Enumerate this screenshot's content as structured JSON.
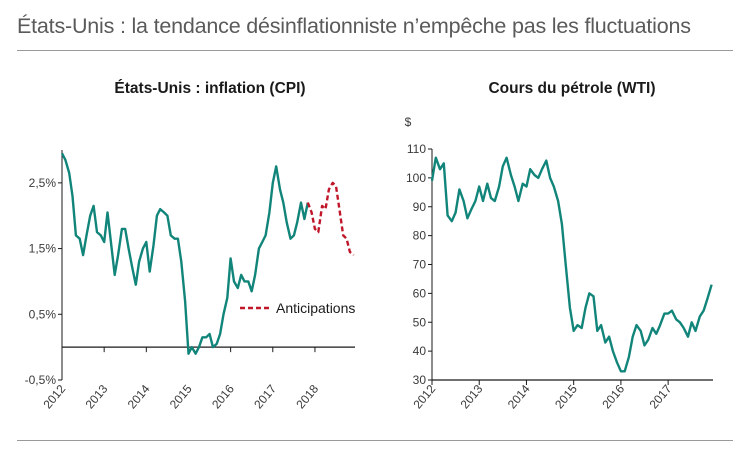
{
  "header": {
    "title": "États-Unis : la tendance désinflationniste n’empêche pas les fluctuations"
  },
  "colors": {
    "series": "#12857a",
    "forecast": "#c0182a",
    "axis": "#1a1a1a",
    "rule": "#9a9a9a"
  },
  "chart_data": [
    {
      "type": "line",
      "title": "États-Unis : inflation (CPI)",
      "ylim": [
        -0.5,
        3.0
      ],
      "y_ticks": [
        -0.5,
        0.5,
        1.5,
        2.5
      ],
      "y_tick_labels": [
        "-0,5%",
        "0,5%",
        "1,5%",
        "2,5%"
      ],
      "xlim": [
        2012.0,
        2018.95
      ],
      "x_ticks": [
        2012,
        2013,
        2014,
        2015,
        2016,
        2017,
        2018
      ],
      "x_tick_labels": [
        "2012",
        "2013",
        "2014",
        "2015",
        "2016",
        "2017",
        "2018"
      ],
      "legend": {
        "position": "right",
        "entries": [
          "Anticipations"
        ]
      },
      "series": [
        {
          "role": "actual",
          "x": [
            2012.0,
            2012.08,
            2012.17,
            2012.25,
            2012.33,
            2012.42,
            2012.5,
            2012.58,
            2012.67,
            2012.75,
            2012.83,
            2012.92,
            2013.0,
            2013.08,
            2013.17,
            2013.25,
            2013.33,
            2013.42,
            2013.5,
            2013.58,
            2013.67,
            2013.75,
            2013.83,
            2013.92,
            2014.0,
            2014.08,
            2014.17,
            2014.25,
            2014.33,
            2014.42,
            2014.5,
            2014.58,
            2014.67,
            2014.75,
            2014.83,
            2014.92,
            2015.0,
            2015.08,
            2015.17,
            2015.25,
            2015.33,
            2015.42,
            2015.5,
            2015.58,
            2015.67,
            2015.75,
            2015.83,
            2015.92,
            2016.0,
            2016.08,
            2016.17,
            2016.25,
            2016.33,
            2016.42,
            2016.5,
            2016.58,
            2016.67,
            2016.75,
            2016.83,
            2016.92,
            2017.0,
            2017.08,
            2017.17,
            2017.25,
            2017.33,
            2017.42,
            2017.5,
            2017.58,
            2017.67,
            2017.75,
            2017.83
          ],
          "values": [
            2.95,
            2.85,
            2.65,
            2.3,
            1.7,
            1.65,
            1.4,
            1.7,
            2.0,
            2.15,
            1.75,
            1.7,
            1.6,
            2.05,
            1.55,
            1.1,
            1.4,
            1.8,
            1.8,
            1.5,
            1.2,
            0.95,
            1.3,
            1.5,
            1.6,
            1.15,
            1.55,
            2.0,
            2.1,
            2.05,
            2.0,
            1.7,
            1.65,
            1.65,
            1.3,
            0.7,
            -0.1,
            0.0,
            -0.1,
            0.0,
            0.15,
            0.15,
            0.2,
            0.0,
            0.05,
            0.2,
            0.5,
            0.75,
            1.35,
            1.0,
            0.9,
            1.1,
            1.0,
            1.0,
            0.85,
            1.1,
            1.5,
            1.6,
            1.7,
            2.05,
            2.5,
            2.75,
            2.4,
            2.2,
            1.9,
            1.65,
            1.7,
            1.9,
            2.2,
            1.95,
            2.2
          ]
        },
        {
          "role": "forecast",
          "name": "Anticipations",
          "x": [
            2017.83,
            2017.92,
            2018.0,
            2018.08,
            2018.17,
            2018.25,
            2018.33,
            2018.42,
            2018.5,
            2018.58,
            2018.67,
            2018.75,
            2018.83,
            2018.92
          ],
          "values": [
            2.2,
            2.05,
            1.8,
            1.75,
            2.15,
            2.1,
            2.4,
            2.5,
            2.45,
            2.1,
            1.7,
            1.65,
            1.45,
            1.4
          ]
        }
      ]
    },
    {
      "type": "line",
      "title": "Cours du pétrole (WTI)",
      "ylabel": "$",
      "ylim": [
        30,
        110
      ],
      "y_ticks": [
        30,
        40,
        50,
        60,
        70,
        80,
        90,
        100,
        110
      ],
      "y_tick_labels": [
        "30",
        "40",
        "50",
        "60",
        "70",
        "80",
        "90",
        "100",
        "110"
      ],
      "xlim": [
        2012.0,
        2017.95
      ],
      "x_ticks": [
        2012,
        2013,
        2014,
        2015,
        2016,
        2017
      ],
      "x_tick_labels": [
        "2012",
        "2013",
        "2014",
        "2015",
        "2016",
        "2017"
      ],
      "series": [
        {
          "x": [
            2012.0,
            2012.08,
            2012.17,
            2012.25,
            2012.33,
            2012.42,
            2012.5,
            2012.58,
            2012.67,
            2012.75,
            2012.83,
            2012.92,
            2013.0,
            2013.08,
            2013.17,
            2013.25,
            2013.33,
            2013.42,
            2013.5,
            2013.58,
            2013.67,
            2013.75,
            2013.83,
            2013.92,
            2014.0,
            2014.08,
            2014.17,
            2014.25,
            2014.33,
            2014.42,
            2014.5,
            2014.58,
            2014.67,
            2014.75,
            2014.83,
            2014.92,
            2015.0,
            2015.08,
            2015.17,
            2015.25,
            2015.33,
            2015.42,
            2015.5,
            2015.58,
            2015.67,
            2015.75,
            2015.83,
            2015.92,
            2016.0,
            2016.08,
            2016.17,
            2016.25,
            2016.33,
            2016.42,
            2016.5,
            2016.58,
            2016.67,
            2016.75,
            2016.83,
            2016.92,
            2017.0,
            2017.08,
            2017.17,
            2017.25,
            2017.33,
            2017.42,
            2017.5,
            2017.58,
            2017.67,
            2017.75,
            2017.83,
            2017.92
          ],
          "values": [
            99,
            107,
            103,
            105,
            87,
            85,
            88,
            96,
            92,
            86,
            89,
            92,
            97,
            92,
            98,
            93,
            92,
            97,
            104,
            107,
            101,
            97,
            92,
            98,
            97,
            103,
            101,
            100,
            103,
            106,
            100,
            97,
            92,
            84,
            70,
            55,
            47,
            49,
            48,
            55,
            60,
            59,
            47,
            49,
            43,
            45,
            40,
            36,
            33,
            33,
            38,
            45,
            49,
            47,
            42,
            44,
            48,
            46,
            49,
            53,
            53,
            54,
            51,
            50,
            48,
            45,
            50,
            47,
            52,
            54,
            58,
            63
          ]
        }
      ]
    }
  ]
}
